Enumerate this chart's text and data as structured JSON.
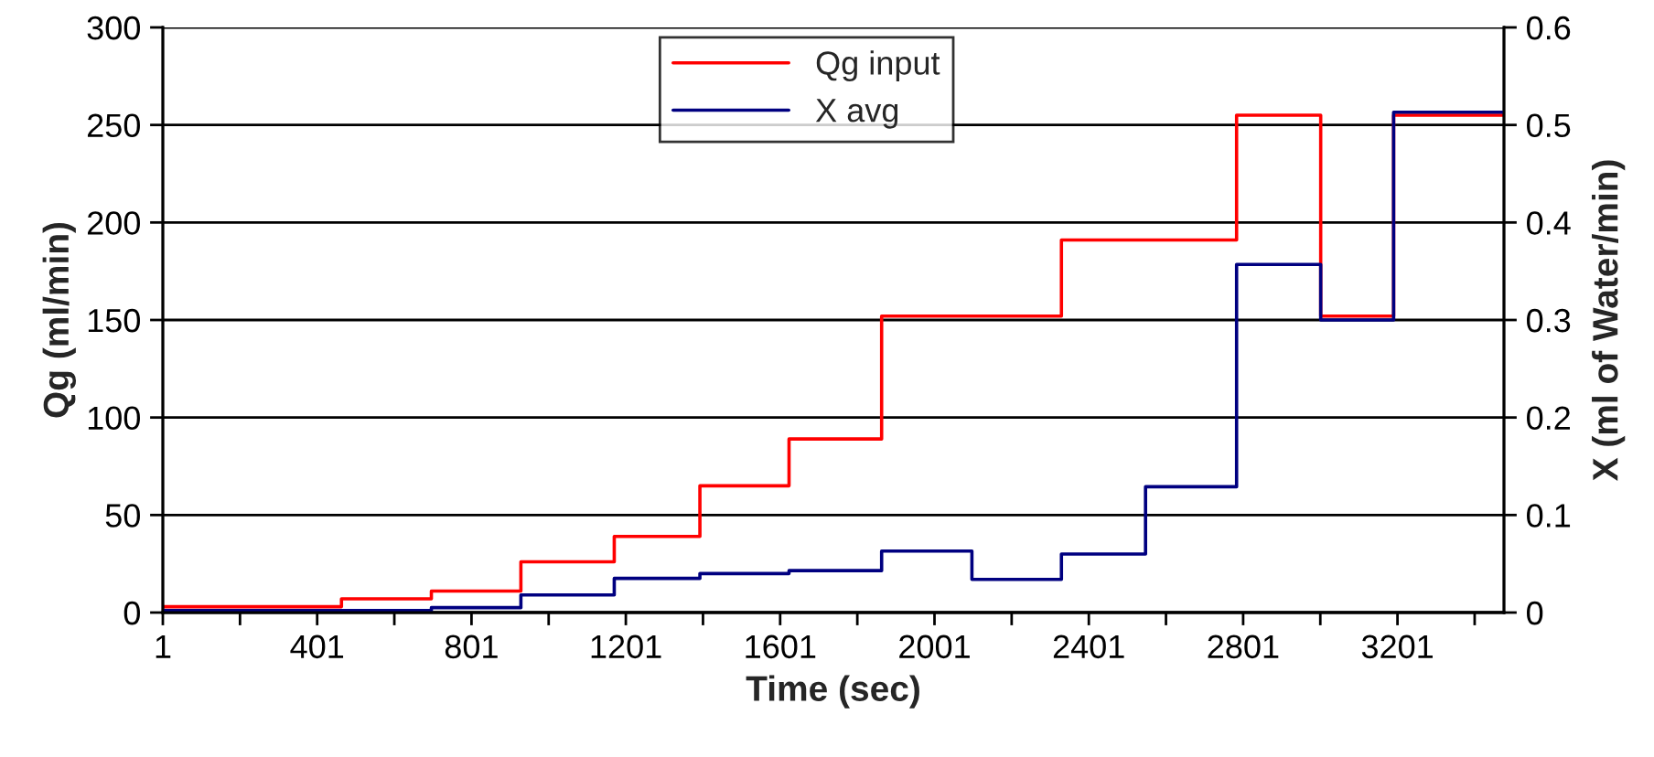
{
  "chart_data": {
    "type": "step",
    "xlabel": "Time (sec)",
    "ylabel": "Qg (ml/min)",
    "y2label": "X (ml of Water/min)",
    "xlim": [
      1,
      3477
    ],
    "xticks": [
      1,
      {
        "value": 201,
        "label": null
      },
      401,
      {
        "value": 601,
        "label": null
      },
      801,
      {
        "value": 1001,
        "label": null
      },
      1201,
      {
        "value": 1401,
        "label": null
      },
      1601,
      {
        "value": 1801,
        "label": null
      },
      2001,
      {
        "value": 2201,
        "label": null
      },
      2401,
      {
        "value": 2601,
        "label": null
      },
      2801,
      {
        "value": 3001,
        "label": null
      },
      3201,
      {
        "value": 3401,
        "label": null
      }
    ],
    "ylim": [
      0,
      300
    ],
    "yticks": [
      0,
      50,
      100,
      150,
      200,
      250,
      300
    ],
    "y2lim": [
      0,
      0.6
    ],
    "y2ticks": [
      0,
      0.1,
      0.2,
      0.3,
      0.4,
      0.5,
      0.6
    ],
    "grid": "y",
    "legend": "top",
    "series": [
      {
        "name": "Qg input",
        "color": "#ff0000",
        "x": [
          1,
          464,
          697,
          929,
          1171,
          1393,
          1624,
          1864,
          2330,
          2784,
          3002,
          3191,
          3477
        ],
        "values": [
          3,
          7,
          11,
          26,
          39,
          65,
          89,
          152,
          191,
          255,
          152,
          255,
          255
        ]
      },
      {
        "name": "X avg",
        "color": "#000080",
        "axis": "y2",
        "x": [
          1,
          697,
          929,
          1171,
          1393,
          1624,
          1864,
          2098,
          2330,
          2548,
          2784,
          3002,
          3191,
          3477
        ],
        "values": [
          0.002,
          0.005,
          0.018,
          0.035,
          0.04,
          0.043,
          0.063,
          0.034,
          0.06,
          0.129,
          0.357,
          0.3,
          0.513,
          0.513
        ]
      }
    ]
  }
}
